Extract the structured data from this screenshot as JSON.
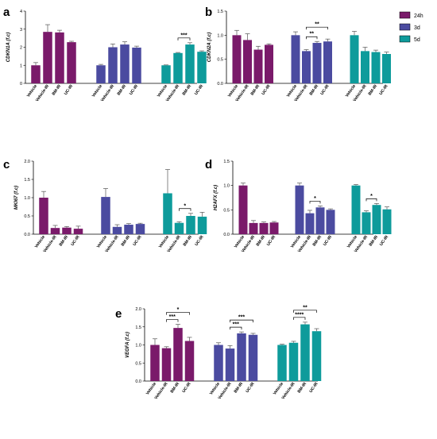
{
  "colors": {
    "24h": "#7a1a6a",
    "3d": "#4b4ba0",
    "5d": "#0e9b9b"
  },
  "legend": [
    "24h",
    "3d",
    "5d"
  ],
  "chart_data": [
    {
      "type": "bar",
      "panel": "a",
      "ylabel": "CDKN1A (f.c)",
      "ylim": [
        0,
        4
      ],
      "yticks": [
        0,
        1,
        2,
        3,
        4
      ],
      "groups": [
        {
          "name": "24h",
          "categories": [
            "Vehicle",
            "Vehicle-IR",
            "BM-IR",
            "UC-IR"
          ],
          "values": [
            1.0,
            2.85,
            2.82,
            2.28
          ],
          "errors": [
            0.15,
            0.4,
            0.12,
            0.05
          ]
        },
        {
          "name": "3d",
          "categories": [
            "Vehicle",
            "Vehicle-IR",
            "BM-IR",
            "UC-IR"
          ],
          "values": [
            1.0,
            2.0,
            2.15,
            1.98
          ],
          "errors": [
            0.05,
            0.18,
            0.15,
            0.08
          ]
        },
        {
          "name": "5d",
          "categories": [
            "Vehicle",
            "Vehicle-IR",
            "BM-IR",
            "UC-IR"
          ],
          "values": [
            1.0,
            1.68,
            2.15,
            1.75
          ],
          "errors": [
            0.02,
            0.03,
            0.1,
            0.05
          ]
        }
      ],
      "significance": [
        {
          "group": 2,
          "from": 1,
          "to": 2,
          "label": "***"
        }
      ]
    },
    {
      "type": "bar",
      "panel": "b",
      "ylabel": "CDKN2A (f.c)",
      "ylim": [
        0,
        1.5
      ],
      "yticks": [
        0.0,
        0.5,
        1.0,
        1.5
      ],
      "groups": [
        {
          "name": "24h",
          "categories": [
            "Vehicle",
            "Vehicle-IR",
            "BM-IR",
            "UC-IR"
          ],
          "values": [
            1.0,
            0.9,
            0.7,
            0.8
          ],
          "errors": [
            0.1,
            0.13,
            0.07,
            0.02
          ]
        },
        {
          "name": "3d",
          "categories": [
            "Vehicle",
            "Vehicle-IR",
            "BM-IR",
            "UC-IR"
          ],
          "values": [
            1.0,
            0.67,
            0.84,
            0.87
          ],
          "errors": [
            0.07,
            0.03,
            0.03,
            0.05
          ]
        },
        {
          "name": "5d",
          "categories": [
            "Vehicle",
            "Vehicle-IR",
            "BM-IR",
            "UC-IR"
          ],
          "values": [
            1.0,
            0.67,
            0.65,
            0.61
          ],
          "errors": [
            0.08,
            0.08,
            0.04,
            0.04
          ]
        }
      ],
      "significance": [
        {
          "group": 1,
          "from": 1,
          "to": 2,
          "label": "**"
        },
        {
          "group": 1,
          "from": 1,
          "to": 3,
          "label": "**"
        }
      ]
    },
    {
      "type": "bar",
      "panel": "c",
      "ylabel": "MKI67 (f.c)",
      "ylim": [
        0,
        2.0
      ],
      "yticks": [
        0.0,
        0.5,
        1.0,
        1.5,
        2.0
      ],
      "groups": [
        {
          "name": "24h",
          "categories": [
            "Vehicle",
            "Vehicle-IR",
            "BM-IR",
            "UC-IR"
          ],
          "values": [
            1.0,
            0.17,
            0.18,
            0.15
          ],
          "errors": [
            0.17,
            0.07,
            0.03,
            0.07
          ]
        },
        {
          "name": "3d",
          "categories": [
            "Vehicle",
            "Vehicle-IR",
            "BM-IR",
            "UC-IR"
          ],
          "values": [
            1.02,
            0.2,
            0.26,
            0.28
          ],
          "errors": [
            0.23,
            0.06,
            0.03,
            0.02
          ]
        },
        {
          "name": "5d",
          "categories": [
            "Vehicle",
            "Vehicle-IR",
            "BM-IR",
            "UC-IR"
          ],
          "values": [
            1.12,
            0.31,
            0.5,
            0.48
          ],
          "errors": [
            0.65,
            0.03,
            0.07,
            0.12
          ]
        }
      ],
      "significance": [
        {
          "group": 2,
          "from": 1,
          "to": 2,
          "label": "*"
        }
      ]
    },
    {
      "type": "bar",
      "panel": "d",
      "ylabel": "H2AFX (f.c)",
      "ylim": [
        0,
        1.5
      ],
      "yticks": [
        0.0,
        0.5,
        1.0,
        1.5
      ],
      "groups": [
        {
          "name": "24h",
          "categories": [
            "Vehicle",
            "Vehicle-IR",
            "BM-IR",
            "UC-IR"
          ],
          "values": [
            1.0,
            0.23,
            0.23,
            0.24
          ],
          "errors": [
            0.05,
            0.05,
            0.02,
            0.02
          ]
        },
        {
          "name": "3d",
          "categories": [
            "Vehicle",
            "Vehicle-IR",
            "BM-IR",
            "UC-IR"
          ],
          "values": [
            1.0,
            0.43,
            0.55,
            0.5
          ],
          "errors": [
            0.05,
            0.06,
            0.03,
            0.02
          ]
        },
        {
          "name": "5d",
          "categories": [
            "Vehicle",
            "Vehicle-IR",
            "BM-IR",
            "UC-IR"
          ],
          "values": [
            1.0,
            0.45,
            0.6,
            0.51
          ],
          "errors": [
            0.02,
            0.03,
            0.03,
            0.05
          ]
        }
      ],
      "significance": [
        {
          "group": 1,
          "from": 1,
          "to": 2,
          "label": "*"
        },
        {
          "group": 2,
          "from": 1,
          "to": 2,
          "label": "*"
        }
      ]
    },
    {
      "type": "bar",
      "panel": "e",
      "ylabel": "VEGFA (f.c)",
      "ylim": [
        0,
        2.0
      ],
      "yticks": [
        0.0,
        0.5,
        1.0,
        1.5,
        2.0
      ],
      "groups": [
        {
          "name": "24h",
          "categories": [
            "Vehicle",
            "Vehicle-IR",
            "BM-IR",
            "UC-IR"
          ],
          "values": [
            1.0,
            0.91,
            1.47,
            1.11
          ],
          "errors": [
            0.17,
            0.04,
            0.1,
            0.1
          ]
        },
        {
          "name": "3d",
          "categories": [
            "Vehicle",
            "Vehicle-IR",
            "BM-IR",
            "UC-IR"
          ],
          "values": [
            1.0,
            0.9,
            1.32,
            1.28
          ],
          "errors": [
            0.06,
            0.08,
            0.04,
            0.04
          ]
        },
        {
          "name": "5d",
          "categories": [
            "Vehicle",
            "Vehicle-IR",
            "BM-IR",
            "UC-IR"
          ],
          "values": [
            1.0,
            1.06,
            1.57,
            1.38
          ],
          "errors": [
            0.02,
            0.04,
            0.06,
            0.07
          ]
        }
      ],
      "significance": [
        {
          "group": 0,
          "from": 1,
          "to": 2,
          "label": "***"
        },
        {
          "group": 0,
          "from": 1,
          "to": 3,
          "label": "*"
        },
        {
          "group": 1,
          "from": 1,
          "to": 2,
          "label": "***"
        },
        {
          "group": 1,
          "from": 1,
          "to": 3,
          "label": "***"
        },
        {
          "group": 2,
          "from": 1,
          "to": 2,
          "label": "****"
        },
        {
          "group": 2,
          "from": 1,
          "to": 3,
          "label": "**"
        }
      ]
    }
  ]
}
